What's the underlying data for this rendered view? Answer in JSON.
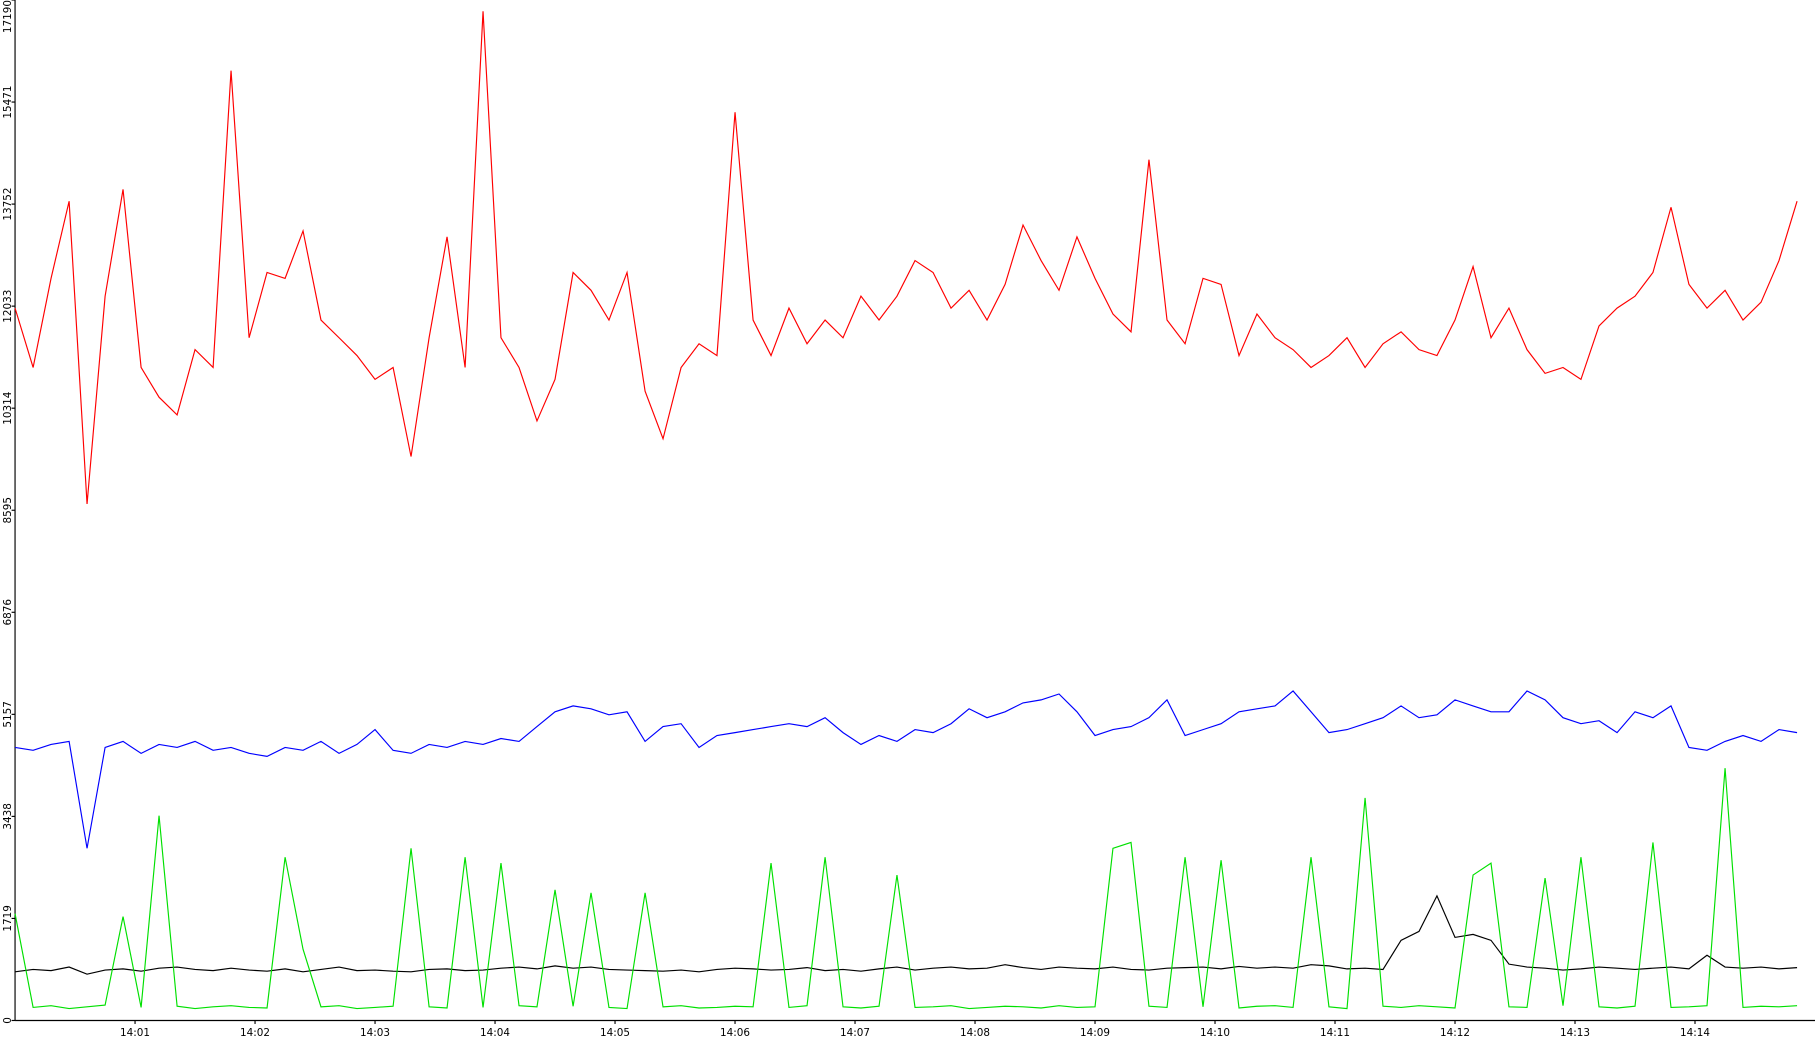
{
  "chart_data": {
    "type": "line",
    "x": [
      0,
      0.15,
      0.3,
      0.45,
      0.6,
      0.75,
      0.9,
      1.05,
      1.2,
      1.35,
      1.5,
      1.65,
      1.8,
      1.95,
      2.1,
      2.25,
      2.4,
      2.55,
      2.7,
      2.85,
      3,
      3.15,
      3.3,
      3.45,
      3.6,
      3.75,
      3.9,
      4.05,
      4.2,
      4.35,
      4.5,
      4.65,
      4.8,
      4.95,
      5.1,
      5.25,
      5.4,
      5.55,
      5.7,
      5.85,
      6,
      6.15,
      6.3,
      6.45,
      6.6,
      6.75,
      6.9,
      7.05,
      7.2,
      7.35,
      7.5,
      7.65,
      7.8,
      7.95,
      8.1,
      8.25,
      8.4,
      8.55,
      8.7,
      8.85,
      9,
      9.15,
      9.3,
      9.45,
      9.6,
      9.75,
      9.9,
      10.05,
      10.2,
      10.35,
      10.5,
      10.65,
      10.8,
      10.95,
      11.1,
      11.25,
      11.4,
      11.55,
      11.7,
      11.85,
      12,
      12.15,
      12.3,
      12.45,
      12.6,
      12.75,
      12.9,
      13.05,
      13.2,
      13.35,
      13.5,
      13.65,
      13.8,
      13.95,
      14.1,
      14.25,
      14.4,
      14.55,
      14.7,
      14.85
    ],
    "xlim": [
      0,
      15
    ],
    "xticks": [
      {
        "value": 1,
        "label": "14:01"
      },
      {
        "value": 2,
        "label": "14:02"
      },
      {
        "value": 3,
        "label": "14:03"
      },
      {
        "value": 4,
        "label": "14:04"
      },
      {
        "value": 5,
        "label": "14:05"
      },
      {
        "value": 6,
        "label": "14:06"
      },
      {
        "value": 7,
        "label": "14:07"
      },
      {
        "value": 8,
        "label": "14:08"
      },
      {
        "value": 9,
        "label": "14:09"
      },
      {
        "value": 10,
        "label": "14:10"
      },
      {
        "value": 11,
        "label": "14:11"
      },
      {
        "value": 12,
        "label": "14:12"
      },
      {
        "value": 13,
        "label": "14:13"
      },
      {
        "value": 14,
        "label": "14:14"
      }
    ],
    "ylim": [
      0,
      17190
    ],
    "yticks": [
      0,
      1719,
      3438,
      5157,
      6876,
      8595,
      10314,
      12033,
      13752,
      15471,
      17190
    ],
    "grid": false,
    "series": [
      {
        "color": "#ff0000",
        "values": [
          12000,
          11000,
          12500,
          13800,
          8700,
          12200,
          14000,
          11000,
          10500,
          10200,
          11300,
          11000,
          16000,
          11500,
          12600,
          12500,
          13300,
          11800,
          11500,
          11200,
          10800,
          11000,
          9500,
          11500,
          13200,
          11000,
          17000,
          11500,
          11000,
          10100,
          10800,
          12600,
          12300,
          11800,
          12600,
          10600,
          9800,
          11000,
          11400,
          11200,
          15300,
          11800,
          11200,
          12000,
          11400,
          11800,
          11500,
          12200,
          11800,
          12200,
          12800,
          12600,
          12000,
          12300,
          11800,
          12400,
          13400,
          12800,
          12300,
          13200,
          12500,
          11900,
          11600,
          14500,
          11800,
          11400,
          12500,
          12400,
          11200,
          11900,
          11500,
          11300,
          11000,
          11200,
          11500,
          11000,
          11400,
          11600,
          11300,
          11200,
          11800,
          12700,
          11500,
          12000,
          11300,
          10900,
          11000,
          10800,
          11700,
          12000,
          12200,
          12600,
          13700,
          12400,
          12000,
          12300,
          11800,
          12100,
          12800,
          13800
        ]
      },
      {
        "color": "#0000ff",
        "values": [
          4600,
          4550,
          4650,
          4700,
          2900,
          4600,
          4700,
          4500,
          4650,
          4600,
          4700,
          4550,
          4600,
          4500,
          4450,
          4600,
          4550,
          4700,
          4500,
          4650,
          4900,
          4550,
          4500,
          4650,
          4600,
          4700,
          4650,
          4750,
          4700,
          4950,
          5200,
          5300,
          5250,
          5150,
          5200,
          4700,
          4950,
          5000,
          4600,
          4800,
          4850,
          4900,
          4950,
          5000,
          4950,
          5100,
          4850,
          4650,
          4800,
          4700,
          4900,
          4850,
          5000,
          5250,
          5100,
          5200,
          5350,
          5400,
          5500,
          5200,
          4800,
          4900,
          4950,
          5100,
          5400,
          4800,
          4900,
          5000,
          5200,
          5250,
          5300,
          5550,
          5200,
          4850,
          4900,
          5000,
          5100,
          5300,
          5100,
          5150,
          5400,
          5300,
          5200,
          5200,
          5550,
          5400,
          5100,
          5000,
          5050,
          4850,
          5200,
          5100,
          5300,
          4600,
          4550,
          4700,
          4800,
          4700,
          4900,
          4850
        ]
      },
      {
        "color": "#000000",
        "values": [
          820,
          860,
          840,
          900,
          780,
          850,
          870,
          830,
          880,
          900,
          860,
          840,
          880,
          850,
          830,
          870,
          820,
          860,
          900,
          840,
          850,
          830,
          820,
          860,
          870,
          840,
          850,
          880,
          900,
          870,
          920,
          880,
          900,
          860,
          850,
          840,
          830,
          850,
          820,
          860,
          880,
          870,
          850,
          860,
          890,
          840,
          860,
          830,
          870,
          900,
          850,
          880,
          900,
          870,
          880,
          940,
          890,
          860,
          900,
          880,
          870,
          900,
          860,
          850,
          880,
          890,
          900,
          870,
          910,
          880,
          900,
          880,
          940,
          920,
          870,
          880,
          860,
          1350,
          1500,
          2100,
          1400,
          1450,
          1350,
          950,
          900,
          880,
          850,
          870,
          900,
          880,
          860,
          880,
          900,
          870,
          1100,
          900,
          880,
          900,
          870,
          890
        ]
      },
      {
        "color": "#00e000",
        "values": [
          1800,
          220,
          250,
          200,
          230,
          260,
          1750,
          220,
          3450,
          240,
          200,
          230,
          250,
          220,
          210,
          2750,
          1200,
          230,
          250,
          200,
          220,
          240,
          2900,
          230,
          210,
          2750,
          220,
          2650,
          250,
          230,
          2200,
          240,
          2150,
          220,
          200,
          2150,
          230,
          250,
          210,
          220,
          240,
          230,
          2650,
          220,
          250,
          2750,
          230,
          210,
          240,
          2450,
          220,
          230,
          250,
          200,
          220,
          240,
          230,
          210,
          250,
          220,
          230,
          2900,
          3000,
          240,
          220,
          2750,
          230,
          2700,
          210,
          240,
          250,
          220,
          2750,
          230,
          200,
          3750,
          240,
          220,
          250,
          230,
          210,
          2450,
          2650,
          230,
          220,
          2400,
          250,
          2750,
          230,
          210,
          240,
          3000,
          220,
          230,
          250,
          4250,
          220,
          240,
          230,
          250
        ]
      }
    ]
  }
}
